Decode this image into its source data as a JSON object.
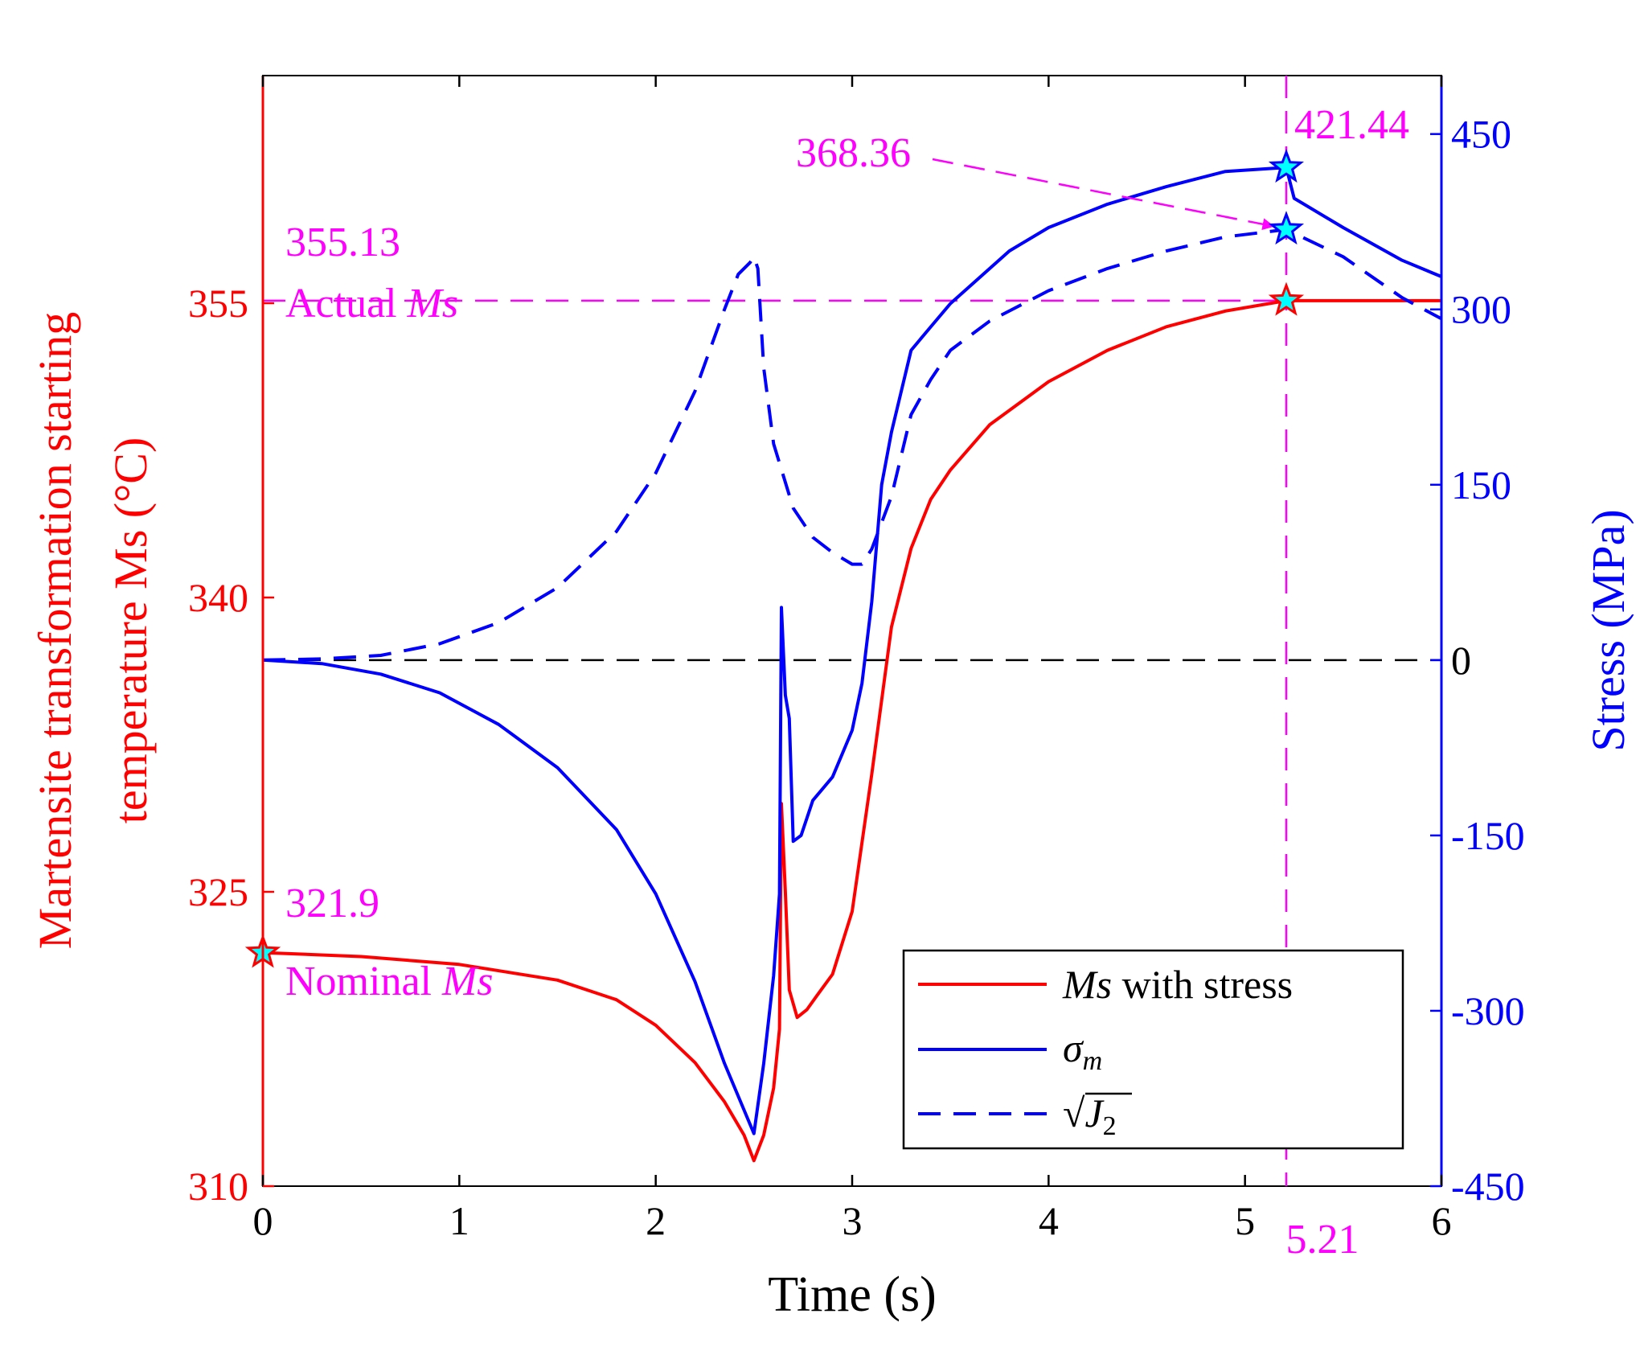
{
  "colors": {
    "left_axis": "#ff0000",
    "right_axis": "#0000ff",
    "annotation": "#ff00ff",
    "ms_line": "#ff0000",
    "stress_line": "#0000ff",
    "zero_line": "#000000",
    "marker_fill": "#00ffff"
  },
  "chart_data": {
    "type": "line",
    "xlabel": "Time (s)",
    "ylabel_left_line1": "Martensite transformation starting",
    "ylabel_left_line2": "temperature Ms (°C)",
    "ylabel_right": "Stress (MPa)",
    "xlim": [
      0,
      6
    ],
    "ylim_left": [
      310,
      366.6
    ],
    "ylim_right": [
      -450,
      500
    ],
    "xticks": [
      "0",
      "1",
      "2",
      "3",
      "4",
      "5",
      "6"
    ],
    "yticks_left": [
      "310",
      "325",
      "340",
      "355"
    ],
    "yticks_right": [
      "-450",
      "-300",
      "-150",
      "0",
      "150",
      "300",
      "450"
    ],
    "legend": {
      "ms": {
        "math": "Ms",
        "text": " with stress"
      },
      "sigma": {
        "math": "σ",
        "sub": "m"
      },
      "j2": {
        "root": "√",
        "math": "J",
        "sub": "2"
      }
    },
    "series": [
      {
        "name": "Ms with stress",
        "axis": "left",
        "style": "solid",
        "x": [
          0,
          0.5,
          1,
          1.5,
          1.8,
          2.0,
          2.2,
          2.35,
          2.45,
          2.5,
          2.55,
          2.6,
          2.63,
          2.64,
          2.66,
          2.68,
          2.72,
          2.77,
          2.82,
          2.9,
          3.0,
          3.1,
          3.2,
          3.3,
          3.4,
          3.5,
          3.7,
          4.0,
          4.3,
          4.6,
          4.9,
          5.21,
          6.0
        ],
        "values": [
          321.9,
          321.7,
          321.3,
          320.5,
          319.5,
          318.2,
          316.3,
          314.3,
          312.6,
          311.3,
          312.6,
          315.0,
          318.0,
          329.5,
          325.0,
          320.0,
          318.6,
          319.0,
          319.7,
          320.8,
          324.0,
          331.0,
          338.5,
          342.5,
          345.0,
          346.5,
          348.8,
          351.0,
          352.6,
          353.8,
          354.6,
          355.13,
          355.13
        ]
      },
      {
        "name": "σm",
        "axis": "right",
        "style": "solid",
        "x": [
          0,
          0.3,
          0.6,
          0.9,
          1.2,
          1.5,
          1.8,
          2.0,
          2.2,
          2.35,
          2.45,
          2.5,
          2.55,
          2.6,
          2.63,
          2.64,
          2.66,
          2.68,
          2.7,
          2.74,
          2.8,
          2.9,
          3.0,
          3.05,
          3.1,
          3.15,
          3.2,
          3.3,
          3.4,
          3.5,
          3.6,
          3.8,
          4.0,
          4.3,
          4.6,
          4.9,
          5.21,
          5.25,
          5.5,
          5.8,
          6.0
        ],
        "values": [
          0,
          -3,
          -12,
          -28,
          -55,
          -92,
          -145,
          -200,
          -275,
          -345,
          -385,
          -405,
          -345,
          -270,
          -200,
          45,
          -30,
          -50,
          -155,
          -150,
          -120,
          -100,
          -60,
          -20,
          50,
          150,
          195,
          265,
          285,
          305,
          320,
          350,
          370,
          390,
          405,
          418,
          421.44,
          395,
          370,
          342,
          328
        ]
      },
      {
        "name": "√J2",
        "axis": "right",
        "style": "dashed",
        "x": [
          0,
          0.3,
          0.6,
          0.9,
          1.2,
          1.5,
          1.8,
          2.0,
          2.2,
          2.35,
          2.42,
          2.48,
          2.5,
          2.52,
          2.55,
          2.6,
          2.7,
          2.8,
          2.9,
          3.0,
          3.05,
          3.1,
          3.2,
          3.3,
          3.4,
          3.5,
          3.7,
          4.0,
          4.3,
          4.6,
          4.9,
          5.21,
          5.5,
          5.8,
          6.0
        ],
        "values": [
          0,
          1,
          4,
          14,
          32,
          62,
          110,
          160,
          230,
          300,
          330,
          340,
          345,
          335,
          250,
          185,
          130,
          105,
          92,
          82,
          82,
          95,
          140,
          210,
          240,
          265,
          290,
          316,
          335,
          350,
          362,
          368.36,
          345,
          310,
          292
        ]
      }
    ],
    "annotations": {
      "actual_value": "355.13",
      "actual_label": "Actual ",
      "actual_label_math": "Ms",
      "nominal_value": "321.9",
      "nominal_label": "Nominal ",
      "nominal_label_math": "Ms",
      "peak_sigma": "421.44",
      "peak_j2": "368.36",
      "time_marker": "5.21"
    },
    "markers": [
      {
        "axis": "left",
        "x": 0,
        "y": 321.9
      },
      {
        "axis": "left",
        "x": 5.21,
        "y": 355.13
      },
      {
        "axis": "right",
        "x": 5.21,
        "y": 421.44
      },
      {
        "axis": "right",
        "x": 5.21,
        "y": 368.36
      }
    ],
    "reference_lines": {
      "actual_ms": 355.13,
      "time": 5.21,
      "zero_stress": 0
    }
  }
}
